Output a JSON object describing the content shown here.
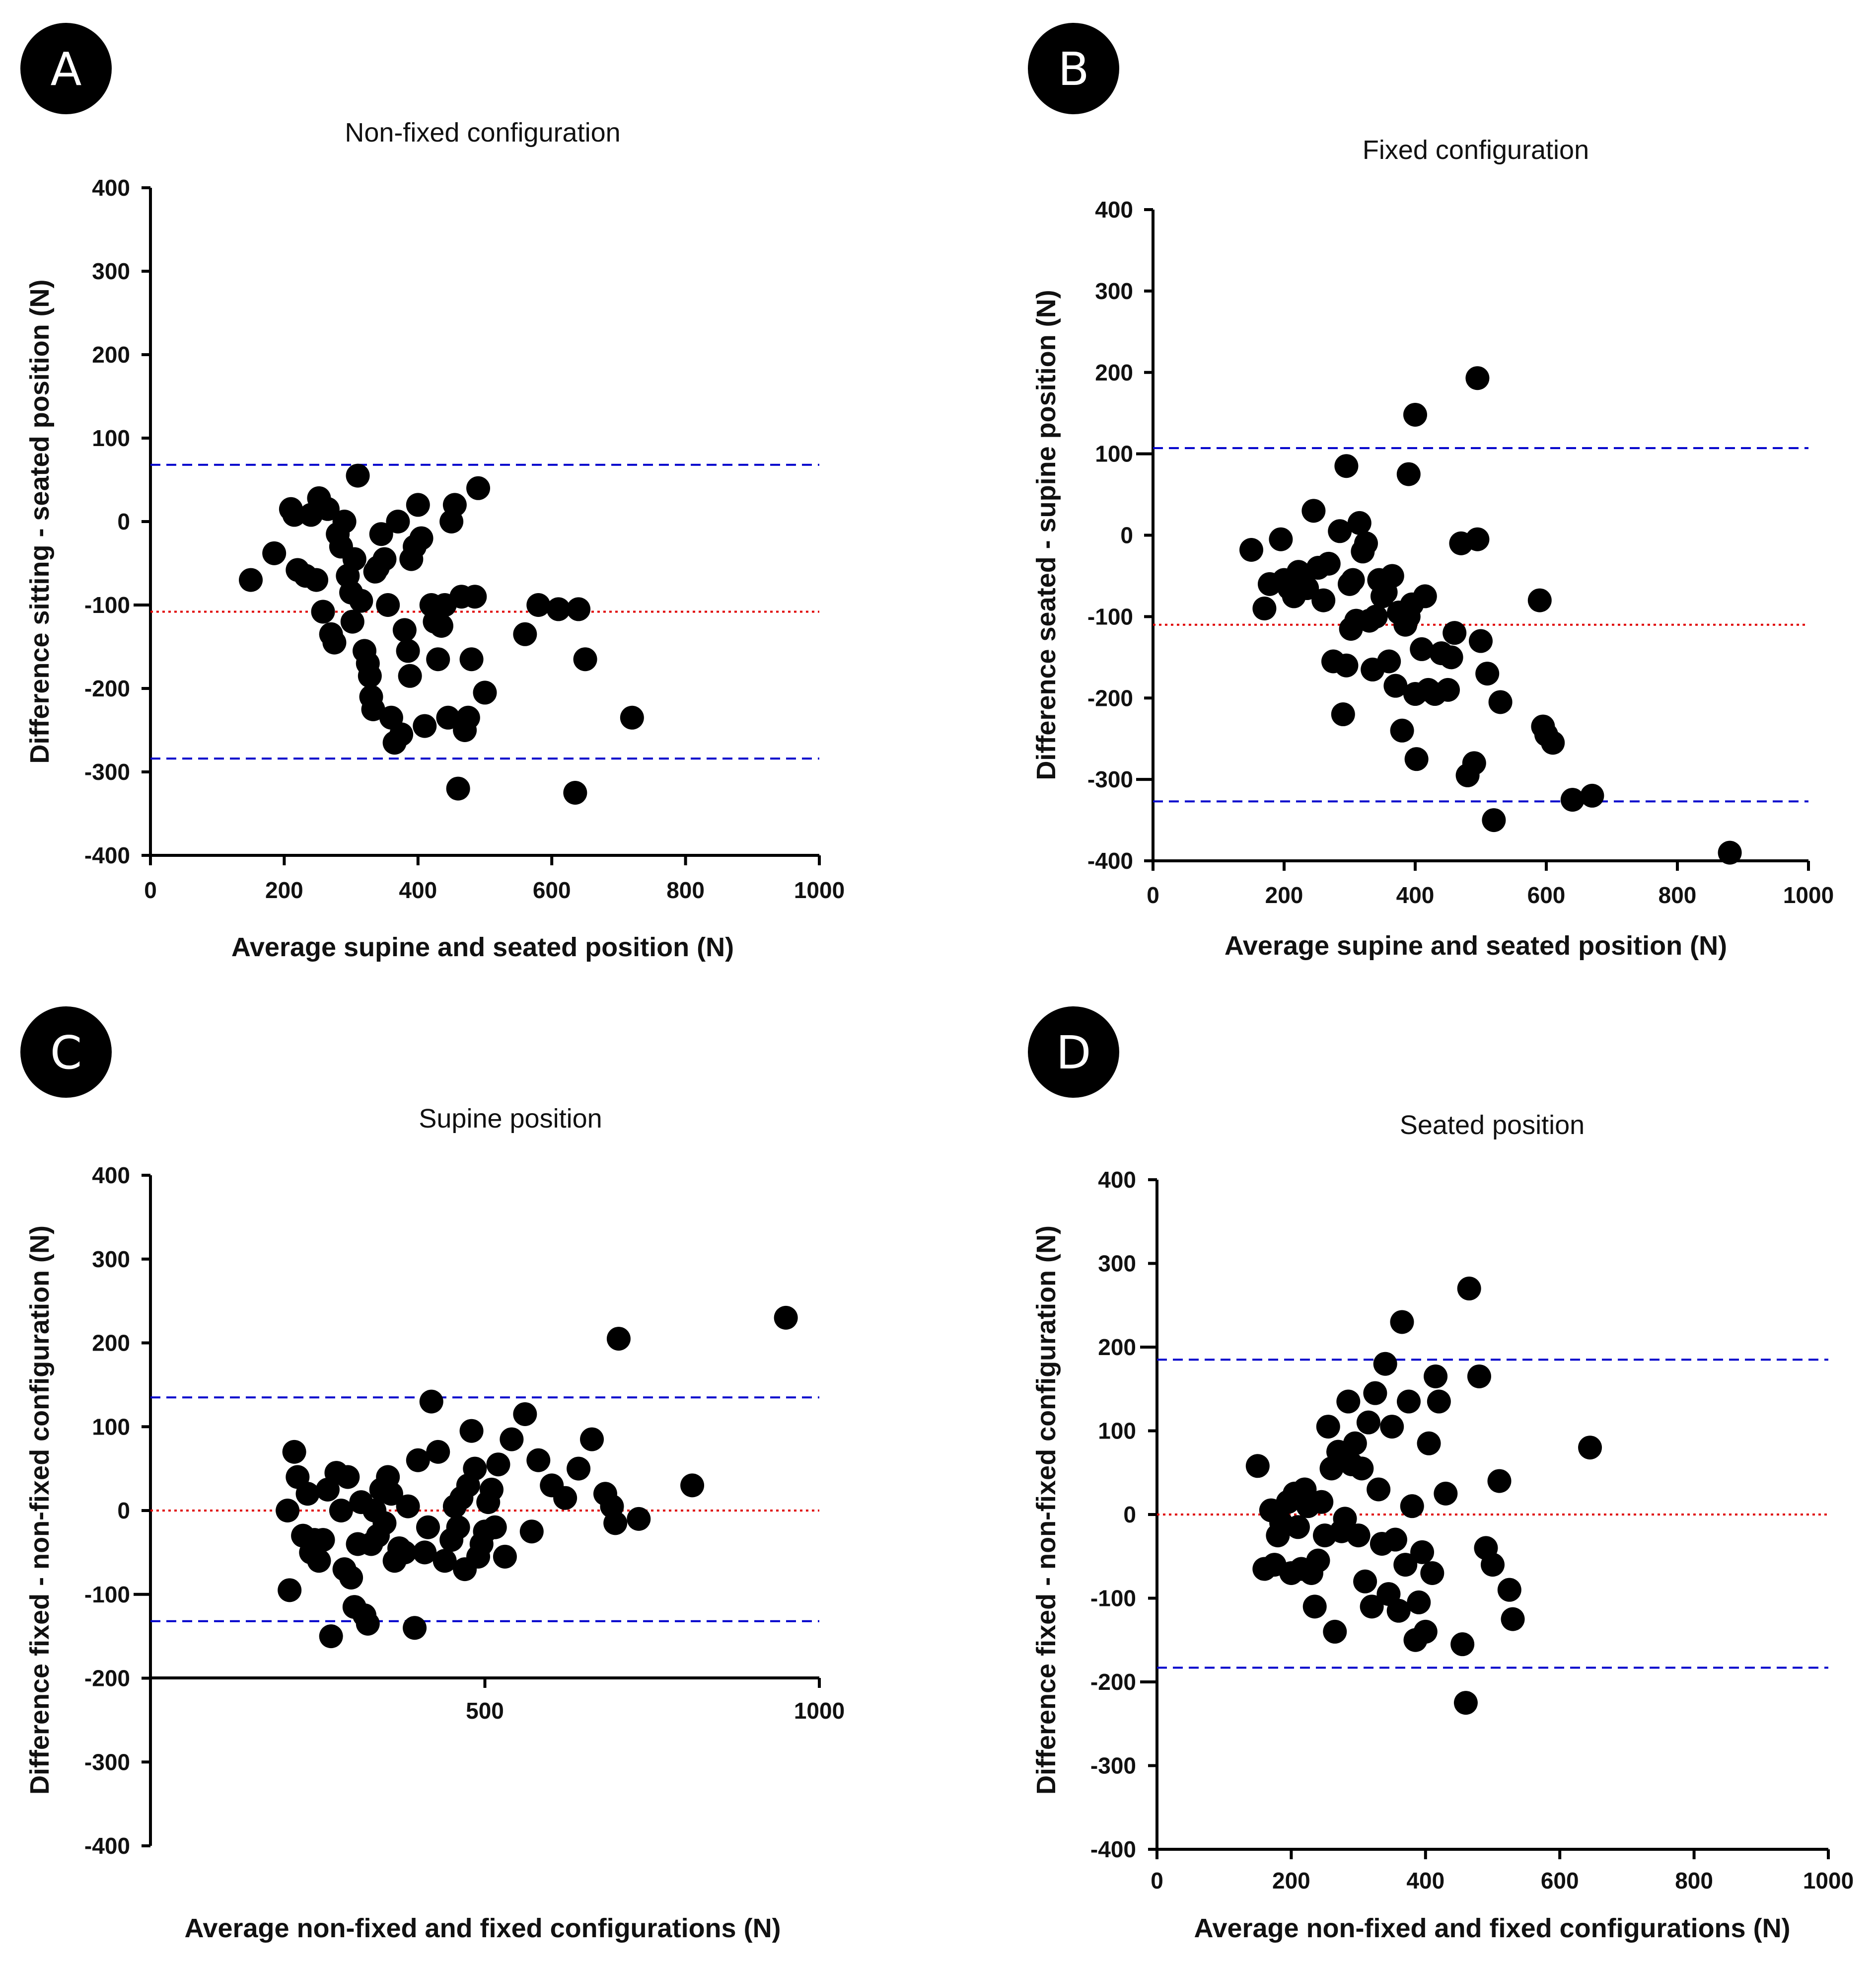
{
  "chart_data": [
    {
      "panel": "A",
      "type": "scatter",
      "title": "Non-fixed configuration",
      "xlabel": "Average supine and seated position (N)",
      "ylabel": "Difference sitting - seated position (N)",
      "xlim": [
        0,
        1000
      ],
      "ylim": [
        -400,
        400
      ],
      "xticks": [
        "0",
        "200",
        "400",
        "600",
        "800",
        "1000"
      ],
      "yticks": [
        "400",
        "300",
        "200",
        "100",
        "0",
        "-100",
        "-200",
        "-300",
        "-400"
      ],
      "bias": -108,
      "loa_upper": 68,
      "loa_lower": -284,
      "x": [
        150,
        185,
        210,
        215,
        220,
        232,
        240,
        248,
        252,
        258,
        265,
        270,
        275,
        280,
        285,
        290,
        295,
        300,
        302,
        305,
        310,
        315,
        320,
        325,
        328,
        330,
        333,
        336,
        340,
        345,
        350,
        355,
        360,
        365,
        370,
        375,
        380,
        385,
        388,
        390,
        395,
        400,
        405,
        410,
        420,
        425,
        430,
        435,
        440,
        445,
        450,
        455,
        460,
        465,
        470,
        475,
        480,
        485,
        490,
        500,
        560,
        580,
        610,
        635,
        640,
        650,
        720
      ],
      "y": [
        -70,
        -38,
        15,
        8,
        -58,
        -65,
        8,
        -70,
        28,
        -108,
        15,
        -135,
        -145,
        -15,
        -30,
        0,
        -65,
        -85,
        -120,
        -45,
        55,
        -95,
        -155,
        -170,
        -185,
        -210,
        -225,
        -60,
        -55,
        -15,
        -45,
        -100,
        -235,
        -265,
        0,
        -255,
        -130,
        -155,
        -185,
        -45,
        -30,
        20,
        -20,
        -245,
        -100,
        -120,
        -165,
        -125,
        -100,
        -235,
        0,
        20,
        -320,
        -90,
        -250,
        -235,
        -165,
        -90,
        40,
        -205,
        -135,
        -100,
        -105,
        -325,
        -105,
        -165,
        -235
      ]
    },
    {
      "panel": "B",
      "type": "scatter",
      "title": "Fixed configuration",
      "xlabel": "Average supine and seated position (N)",
      "ylabel": "Difference seated - supine position (N)",
      "xlim": [
        0,
        1000
      ],
      "ylim": [
        -400,
        400
      ],
      "xticks": [
        "0",
        "200",
        "400",
        "600",
        "800",
        "1000"
      ],
      "yticks": [
        "400",
        "300",
        "200",
        "100",
        "0",
        "-100",
        "-200",
        "-300",
        "-400"
      ],
      "bias": -110,
      "loa_upper": 107,
      "loa_lower": -327,
      "x": [
        150,
        170,
        178,
        195,
        200,
        208,
        215,
        222,
        228,
        235,
        245,
        252,
        260,
        268,
        275,
        285,
        290,
        295,
        300,
        302,
        305,
        310,
        315,
        320,
        325,
        330,
        335,
        340,
        345,
        350,
        355,
        360,
        365,
        370,
        375,
        380,
        385,
        390,
        395,
        400,
        402,
        410,
        415,
        420,
        430,
        440,
        450,
        455,
        460,
        470,
        480,
        490,
        495,
        500,
        510,
        520,
        530,
        590,
        595,
        600,
        610,
        640,
        670,
        880,
        400,
        495,
        295,
        390
      ],
      "y": [
        -18,
        -90,
        -60,
        -5,
        -55,
        -65,
        -75,
        -45,
        -50,
        -65,
        30,
        -40,
        -80,
        -35,
        -155,
        5,
        -220,
        -160,
        -60,
        -115,
        -55,
        -105,
        15,
        -20,
        -10,
        -105,
        -165,
        -100,
        -55,
        -75,
        -70,
        -155,
        -50,
        -185,
        -95,
        -240,
        -110,
        -100,
        -85,
        -195,
        -275,
        -140,
        -75,
        -190,
        -195,
        -145,
        -190,
        -150,
        -120,
        -10,
        -295,
        -280,
        -5,
        -130,
        -170,
        -350,
        -205,
        -80,
        -235,
        -245,
        -255,
        -325,
        -320,
        -390,
        148,
        193,
        85,
        75
      ]
    },
    {
      "panel": "C",
      "type": "scatter",
      "title": "Supine position",
      "xlabel": "Average non-fixed and fixed configurations (N)",
      "ylabel": "Difference fixed - non-fixed configuration (N)",
      "xlim": [
        0,
        1000
      ],
      "ylim": [
        -400,
        400
      ],
      "xticks": [
        "500",
        "1000"
      ],
      "yticks": [
        "400",
        "300",
        "200",
        "100",
        "0",
        "-100",
        "-200",
        "-300",
        "-400"
      ],
      "bias": 0,
      "loa_upper": 135,
      "loa_lower": -132,
      "x": [
        205,
        208,
        215,
        220,
        228,
        235,
        240,
        245,
        252,
        258,
        265,
        270,
        278,
        285,
        290,
        295,
        300,
        305,
        310,
        315,
        320,
        325,
        330,
        335,
        340,
        345,
        350,
        355,
        360,
        365,
        372,
        380,
        385,
        395,
        400,
        410,
        415,
        420,
        430,
        440,
        450,
        455,
        460,
        465,
        470,
        475,
        480,
        485,
        490,
        495,
        500,
        505,
        510,
        515,
        520,
        530,
        540,
        560,
        570,
        580,
        600,
        620,
        640,
        660,
        680,
        690,
        700,
        730,
        810,
        950,
        695
      ],
      "y": [
        0,
        -95,
        70,
        40,
        -30,
        20,
        -50,
        -35,
        -60,
        -35,
        25,
        -150,
        45,
        0,
        -70,
        40,
        -80,
        -115,
        -40,
        10,
        -125,
        -135,
        -40,
        0,
        -30,
        25,
        -15,
        40,
        20,
        -60,
        -45,
        -50,
        5,
        -140,
        60,
        -50,
        -20,
        130,
        70,
        -60,
        -35,
        5,
        -20,
        15,
        -70,
        30,
        95,
        50,
        -55,
        -40,
        -25,
        10,
        25,
        -20,
        55,
        -55,
        85,
        115,
        -25,
        60,
        30,
        15,
        50,
        85,
        20,
        5,
        205,
        -10,
        30,
        230,
        -15
      ]
    },
    {
      "panel": "D",
      "type": "scatter",
      "title": "Seated position",
      "xlabel": "Average non-fixed and fixed configurations (N)",
      "ylabel": "Difference fixed - non-fixed configuration (N)",
      "xlim": [
        0,
        1000
      ],
      "ylim": [
        -400,
        400
      ],
      "xticks": [
        "0",
        "200",
        "400",
        "600",
        "800",
        "1000"
      ],
      "yticks": [
        "400",
        "300",
        "200",
        "100",
        "0",
        "-100",
        "-200",
        "-300",
        "-400"
      ],
      "bias": 0,
      "loa_upper": 185,
      "loa_lower": -183,
      "x": [
        150,
        160,
        170,
        175,
        180,
        185,
        195,
        200,
        205,
        210,
        215,
        220,
        225,
        230,
        235,
        240,
        245,
        250,
        255,
        260,
        265,
        270,
        275,
        280,
        285,
        290,
        295,
        300,
        305,
        310,
        315,
        320,
        325,
        330,
        335,
        340,
        345,
        350,
        355,
        360,
        365,
        370,
        375,
        380,
        385,
        390,
        395,
        400,
        405,
        410,
        415,
        420,
        430,
        455,
        460,
        465,
        480,
        490,
        500,
        510,
        525,
        530,
        645
      ],
      "y": [
        58,
        -65,
        5,
        -60,
        -25,
        -10,
        15,
        -70,
        25,
        -15,
        -65,
        30,
        10,
        -70,
        -110,
        -55,
        15,
        -25,
        105,
        55,
        -140,
        75,
        -20,
        -5,
        135,
        60,
        85,
        -25,
        55,
        -80,
        110,
        -110,
        145,
        30,
        -35,
        180,
        -95,
        105,
        -30,
        -115,
        230,
        -60,
        135,
        10,
        -150,
        -105,
        -45,
        -140,
        85,
        -70,
        165,
        135,
        25,
        -155,
        -225,
        270,
        165,
        -40,
        -60,
        40,
        -90,
        -125,
        80
      ]
    }
  ]
}
